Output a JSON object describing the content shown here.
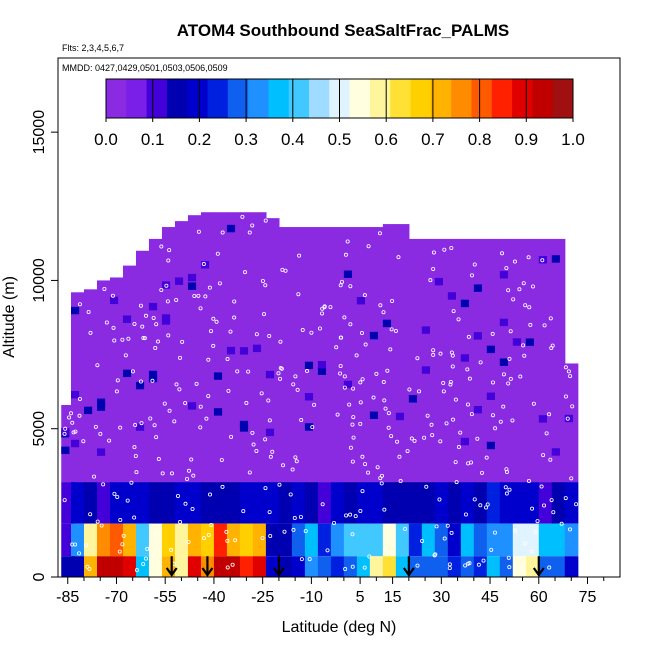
{
  "chart_data": {
    "type": "heatmap",
    "title": "ATOM4 Southbound SeaSaltFrac_PALMS",
    "flights_label": "Flts: 2,3,4,5,6,7",
    "mmdd_label": "MMDD: 0427,0429,0501,0503,0506,0509",
    "xlabel": "Latitude (deg N)",
    "ylabel": "Altitude (m)",
    "xlim": [
      -88,
      85
    ],
    "ylim": [
      0,
      17500
    ],
    "x_ticks": [
      -85,
      -70,
      -55,
      -40,
      -25,
      -10,
      5,
      15,
      30,
      45,
      60,
      75
    ],
    "x_tick_labels": [
      "-85",
      "-70",
      "-55",
      "-40",
      "-25",
      "-10",
      "5",
      "15",
      "30",
      "45",
      "60",
      "75"
    ],
    "x_minor_ticks": [
      -80,
      -75,
      -65,
      -60,
      -50,
      -45,
      -35,
      -30,
      -20,
      -15,
      -5,
      0,
      10,
      20,
      25,
      35,
      40,
      50,
      55,
      65,
      70,
      80
    ],
    "y_ticks": [
      0,
      5000,
      10000,
      15000
    ],
    "y_tick_labels": [
      "0",
      "5000",
      "10000",
      "15000"
    ],
    "colorbar": {
      "ticks": [
        0.0,
        0.1,
        0.2,
        0.3,
        0.4,
        0.5,
        0.6,
        0.7,
        0.8,
        0.9,
        1.0
      ],
      "tick_labels": [
        "0.0",
        "0.1",
        "0.2",
        "0.3",
        "0.4",
        "0.5",
        "0.6",
        "0.7",
        "0.8",
        "0.9",
        "1.0"
      ],
      "colors": [
        "#8a2be2",
        "#7a1fe8",
        "#4400d8",
        "#0000b0",
        "#0000cc",
        "#0020e0",
        "#1060f0",
        "#1e90ff",
        "#00bfff",
        "#40c8ff",
        "#a0dcff",
        "#e0f4ff",
        "#ffffe0",
        "#fff59d",
        "#ffe135",
        "#ffd000",
        "#ffb300",
        "#ff8c00",
        "#ff5a00",
        "#ff2000",
        "#e00000",
        "#c00000",
        "#a01010"
      ]
    },
    "profile_markers_lat": [
      -53,
      -42,
      -20,
      20,
      60
    ],
    "columns": [
      {
        "lat": -85,
        "top": 5800,
        "bottom": 0,
        "low_value": 0.16
      },
      {
        "lat": -82,
        "top": 9600,
        "bottom": 0,
        "low_value": 0.16
      },
      {
        "lat": -78,
        "top": 9700,
        "bottom": 0,
        "low_value": 0.72
      },
      {
        "lat": -74,
        "top": 10000,
        "bottom": 0,
        "low_value": 0.95
      },
      {
        "lat": -70,
        "top": 10100,
        "bottom": 0,
        "low_value": 0.95
      },
      {
        "lat": -66,
        "top": 10500,
        "bottom": 0,
        "low_value": 0.88
      },
      {
        "lat": -62,
        "top": 11000,
        "bottom": 0,
        "low_value": 0.35
      },
      {
        "lat": -58,
        "top": 11400,
        "bottom": 0,
        "low_value": 0.55
      },
      {
        "lat": -54,
        "top": 11800,
        "bottom": 0,
        "low_value": 0.7
      },
      {
        "lat": -50,
        "top": 12000,
        "bottom": 0,
        "low_value": 0.6
      },
      {
        "lat": -46,
        "top": 12200,
        "bottom": 0,
        "low_value": 0.9
      },
      {
        "lat": -42,
        "top": 12300,
        "bottom": 0,
        "low_value": 0.75
      },
      {
        "lat": -38,
        "top": 12300,
        "bottom": 0,
        "low_value": 0.95
      },
      {
        "lat": -34,
        "top": 12300,
        "bottom": 0,
        "low_value": 0.95
      },
      {
        "lat": -30,
        "top": 12300,
        "bottom": 0,
        "low_value": 0.85
      },
      {
        "lat": -26,
        "top": 12300,
        "bottom": 0,
        "low_value": 0.9
      },
      {
        "lat": -22,
        "top": 12100,
        "bottom": 0,
        "low_value": 0.2
      },
      {
        "lat": -18,
        "top": 11800,
        "bottom": 0,
        "low_value": 0.15
      },
      {
        "lat": -14,
        "top": 11800,
        "bottom": 0,
        "low_value": 0.2
      },
      {
        "lat": -10,
        "top": 11800,
        "bottom": 0,
        "low_value": 0.32
      },
      {
        "lat": -6,
        "top": 11800,
        "bottom": 0,
        "low_value": 0.3
      },
      {
        "lat": -2,
        "top": 11800,
        "bottom": 0,
        "low_value": 0.25
      },
      {
        "lat": 2,
        "top": 11800,
        "bottom": 0,
        "low_value": 0.3
      },
      {
        "lat": 6,
        "top": 11800,
        "bottom": 0,
        "low_value": 0.35
      },
      {
        "lat": 10,
        "top": 11800,
        "bottom": 0,
        "low_value": 0.58
      },
      {
        "lat": 14,
        "top": 11900,
        "bottom": 0,
        "low_value": 0.62
      },
      {
        "lat": 18,
        "top": 11900,
        "bottom": 0,
        "low_value": 0.35
      },
      {
        "lat": 22,
        "top": 11400,
        "bottom": 0,
        "low_value": 0.3
      },
      {
        "lat": 26,
        "top": 11400,
        "bottom": 0,
        "low_value": 0.3
      },
      {
        "lat": 30,
        "top": 11400,
        "bottom": 0,
        "low_value": 0.3
      },
      {
        "lat": 34,
        "top": 11400,
        "bottom": 0,
        "low_value": 0.25
      },
      {
        "lat": 38,
        "top": 11400,
        "bottom": 0,
        "low_value": 0.3
      },
      {
        "lat": 42,
        "top": 11400,
        "bottom": 0,
        "low_value": 0.25
      },
      {
        "lat": 46,
        "top": 11400,
        "bottom": 0,
        "low_value": 0.35
      },
      {
        "lat": 50,
        "top": 11400,
        "bottom": 0,
        "low_value": 0.3
      },
      {
        "lat": 54,
        "top": 11400,
        "bottom": 0,
        "low_value": 0.55
      },
      {
        "lat": 58,
        "top": 11400,
        "bottom": 0,
        "low_value": 0.6
      },
      {
        "lat": 62,
        "top": 11400,
        "bottom": 0,
        "low_value": 0.3
      },
      {
        "lat": 66,
        "top": 11400,
        "bottom": 0,
        "low_value": 0.3
      },
      {
        "lat": 70,
        "top": 7200,
        "bottom": 0,
        "low_value": 0.2
      }
    ],
    "grid": false,
    "legend": "top colorbar"
  }
}
